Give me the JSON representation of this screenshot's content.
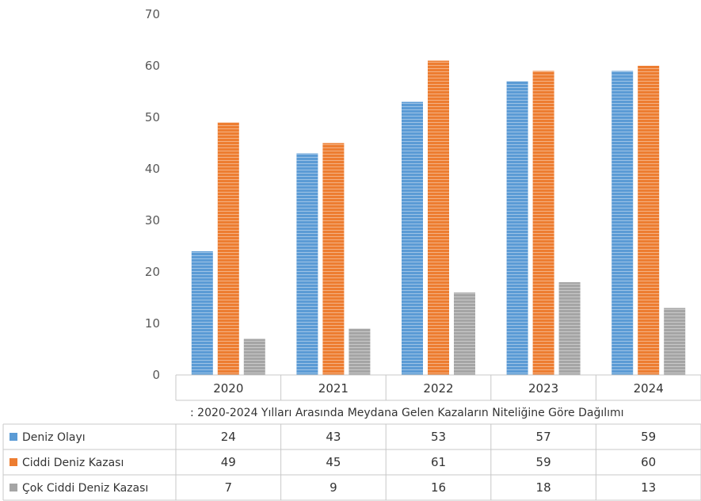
{
  "chart_data": {
    "type": "bar",
    "categories": [
      "2020",
      "2021",
      "2022",
      "2023",
      "2024"
    ],
    "series": [
      {
        "name": "Deniz Olayı",
        "color": "#5b9bd5",
        "values": [
          24,
          43,
          53,
          57,
          59
        ]
      },
      {
        "name": "Ciddi Deniz Kazası",
        "color": "#ed7d31",
        "values": [
          49,
          45,
          61,
          59,
          60
        ]
      },
      {
        "name": "Çok Ciddi Deniz Kazası",
        "color": "#a5a5a5",
        "values": [
          7,
          9,
          16,
          18,
          13
        ]
      }
    ],
    "ylim": [
      0,
      70
    ],
    "yticks": [
      0,
      10,
      20,
      30,
      40,
      50,
      60,
      70
    ],
    "grid": false,
    "legend": "data-table",
    "caption": ": 2020-2024 Yılları Arasında Meydana Gelen Kazaların Niteliğine Göre Dağılımı"
  }
}
